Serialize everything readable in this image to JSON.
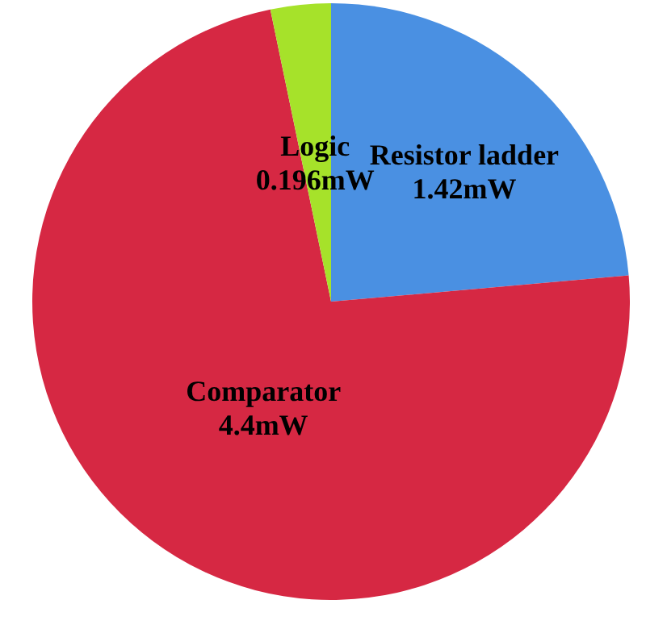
{
  "chart_data": {
    "type": "pie",
    "categories": [
      "Resistor ladder",
      "Comparator",
      "Logic"
    ],
    "values": [
      1.42,
      4.4,
      0.196
    ],
    "value_labels": [
      "1.42mW",
      "4.4mW",
      "0.196mW"
    ],
    "colors": [
      "#4a90e2",
      "#d62843",
      "#a6e22a"
    ],
    "legend": false
  }
}
